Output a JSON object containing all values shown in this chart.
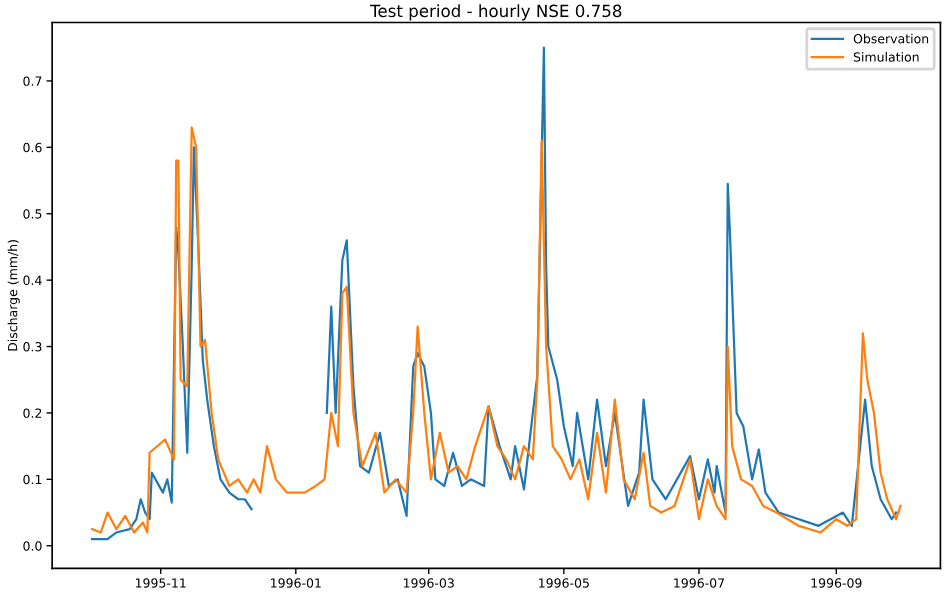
{
  "chart_data": {
    "type": "line",
    "title": "Test period - hourly NSE 0.758",
    "ylabel": "Discharge (mm/h)",
    "xlim": [
      "1995-09-13",
      "1996-10-18"
    ],
    "ylim": [
      -0.034,
      0.788
    ],
    "xticks": [
      "1995-11",
      "1996-01",
      "1996-03",
      "1996-05",
      "1996-07",
      "1996-09"
    ],
    "yticks": [
      {
        "value": 0,
        "label": "0.0"
      },
      0.1,
      0.2,
      0.3,
      0.4,
      0.5,
      0.6,
      0.7
    ],
    "grid": false,
    "legend": "top right",
    "line_style": "solid",
    "marker": "none",
    "series": [
      {
        "name": "Observation",
        "color": "#1f77b4",
        "x": [
          "1995-10-01",
          "1995-10-08",
          "1995-10-12",
          "1995-10-18",
          "1995-10-21",
          "1995-10-23",
          "1995-10-25",
          "1995-10-27",
          "1995-10-28",
          "1995-11-02",
          "1995-11-04",
          "1995-11-06",
          "1995-11-08",
          "1995-11-09",
          "1995-11-11",
          "1995-11-13",
          "1995-11-15",
          "1995-11-16",
          "1995-11-18",
          "1995-11-20",
          "1995-11-22",
          "1995-11-25",
          "1995-11-28",
          "1995-12-02",
          "1995-12-06",
          "1995-12-09",
          "1995-12-12",
          "1995-12-13",
          "1996-01-15",
          "1996-01-17",
          "1996-01-19",
          "1996-01-22",
          "1996-01-24",
          "1996-01-27",
          "1996-01-30",
          "1996-02-03",
          "1996-02-08",
          "1996-02-12",
          "1996-02-16",
          "1996-02-20",
          "1996-02-23",
          "1996-02-25",
          "1996-02-28",
          "1996-03-02",
          "1996-03-04",
          "1996-03-08",
          "1996-03-12",
          "1996-03-16",
          "1996-03-20",
          "1996-03-26",
          "1996-03-28",
          "1996-04-02",
          "1996-04-07",
          "1996-04-09",
          "1996-04-13",
          "1996-04-17",
          "1996-04-19",
          "1996-04-22",
          "1996-04-23",
          "1996-04-24",
          "1996-04-28",
          "1996-05-01",
          "1996-05-05",
          "1996-05-07",
          "1996-05-12",
          "1996-05-16",
          "1996-05-20",
          "1996-05-24",
          "1996-05-30",
          "1996-06-04",
          "1996-06-06",
          "1996-06-10",
          "1996-06-16",
          "1996-06-27",
          "1996-07-01",
          "1996-07-05",
          "1996-07-08",
          "1996-07-09",
          "1996-07-13",
          "1996-07-14",
          "1996-07-15",
          "1996-07-18",
          "1996-07-21",
          "1996-07-25",
          "1996-07-28",
          "1996-07-31",
          "1996-08-06",
          "1996-08-24",
          "1996-09-04",
          "1996-09-08",
          "1996-09-14",
          "1996-09-17",
          "1996-09-21",
          "1996-09-26",
          "1996-09-28"
        ],
        "values": [
          0.01,
          0.01,
          0.02,
          0.025,
          0.04,
          0.07,
          0.05,
          0.04,
          0.11,
          0.08,
          0.1,
          0.065,
          0.48,
          0.44,
          0.3,
          0.14,
          0.42,
          0.6,
          0.45,
          0.28,
          0.22,
          0.15,
          0.1,
          0.08,
          0.07,
          0.07,
          0.055,
          null,
          0.2,
          0.36,
          0.2,
          0.43,
          0.46,
          0.24,
          0.12,
          0.11,
          0.17,
          0.09,
          0.1,
          0.045,
          0.27,
          0.29,
          0.27,
          0.2,
          0.1,
          0.09,
          0.14,
          0.09,
          0.1,
          0.09,
          0.21,
          0.15,
          0.1,
          0.15,
          0.085,
          0.2,
          0.255,
          0.75,
          0.42,
          0.3,
          0.25,
          0.18,
          0.12,
          0.2,
          0.1,
          0.22,
          0.12,
          0.2,
          0.06,
          0.11,
          0.22,
          0.1,
          0.07,
          0.135,
          0.07,
          0.13,
          0.08,
          0.12,
          0.05,
          0.545,
          0.47,
          0.2,
          0.18,
          0.1,
          0.145,
          0.08,
          0.05,
          0.03,
          0.05,
          0.03,
          0.22,
          0.12,
          0.07,
          0.04,
          0.05
        ]
      },
      {
        "name": "Simulation",
        "color": "#ff7f0e",
        "x": [
          "1995-10-01",
          "1995-10-05",
          "1995-10-08",
          "1995-10-12",
          "1995-10-16",
          "1995-10-20",
          "1995-10-24",
          "1995-10-26",
          "1995-10-27",
          "1995-11-03",
          "1995-11-07",
          "1995-11-08",
          "1995-11-09",
          "1995-11-10",
          "1995-11-13",
          "1995-11-15",
          "1995-11-17",
          "1995-11-19",
          "1995-11-21",
          "1995-11-24",
          "1995-11-27",
          "1995-12-02",
          "1995-12-06",
          "1995-12-10",
          "1995-12-13",
          "1995-12-16",
          "1995-12-19",
          "1995-12-23",
          "1995-12-28",
          "1996-01-05",
          "1996-01-10",
          "1996-01-14",
          "1996-01-17",
          "1996-01-20",
          "1996-01-22",
          "1996-01-24",
          "1996-01-27",
          "1996-01-31",
          "1996-02-06",
          "1996-02-10",
          "1996-02-15",
          "1996-02-20",
          "1996-02-23",
          "1996-02-25",
          "1996-02-28",
          "1996-03-02",
          "1996-03-06",
          "1996-03-10",
          "1996-03-14",
          "1996-03-18",
          "1996-03-22",
          "1996-03-28",
          "1996-04-01",
          "1996-04-05",
          "1996-04-09",
          "1996-04-13",
          "1996-04-17",
          "1996-04-19",
          "1996-04-21",
          "1996-04-23",
          "1996-04-26",
          "1996-04-30",
          "1996-05-04",
          "1996-05-08",
          "1996-05-12",
          "1996-05-16",
          "1996-05-20",
          "1996-05-24",
          "1996-05-28",
          "1996-06-02",
          "1996-06-06",
          "1996-06-09",
          "1996-06-14",
          "1996-06-20",
          "1996-06-27",
          "1996-07-01",
          "1996-07-05",
          "1996-07-09",
          "1996-07-13",
          "1996-07-14",
          "1996-07-16",
          "1996-07-20",
          "1996-07-25",
          "1996-07-30",
          "1996-08-05",
          "1996-08-15",
          "1996-08-25",
          "1996-09-01",
          "1996-09-06",
          "1996-09-10",
          "1996-09-13",
          "1996-09-15",
          "1996-09-18",
          "1996-09-21",
          "1996-09-24",
          "1996-09-28",
          "1996-09-30"
        ],
        "values": [
          0.025,
          0.02,
          0.05,
          0.025,
          0.045,
          0.02,
          0.035,
          0.02,
          0.14,
          0.16,
          0.13,
          0.58,
          0.58,
          0.25,
          0.24,
          0.63,
          0.6,
          0.3,
          0.31,
          0.2,
          0.13,
          0.09,
          0.1,
          0.08,
          0.1,
          0.08,
          0.15,
          0.1,
          0.08,
          0.08,
          0.09,
          0.1,
          0.2,
          0.15,
          0.38,
          0.39,
          0.2,
          0.12,
          0.17,
          0.08,
          0.1,
          0.08,
          0.2,
          0.33,
          0.2,
          0.1,
          0.17,
          0.11,
          0.12,
          0.1,
          0.15,
          0.21,
          0.15,
          0.13,
          0.1,
          0.15,
          0.13,
          0.25,
          0.61,
          0.3,
          0.15,
          0.13,
          0.1,
          0.13,
          0.07,
          0.17,
          0.08,
          0.22,
          0.1,
          0.07,
          0.14,
          0.06,
          0.05,
          0.06,
          0.13,
          0.04,
          0.1,
          0.06,
          0.04,
          0.3,
          0.15,
          0.1,
          0.09,
          0.06,
          0.05,
          0.03,
          0.02,
          0.04,
          0.03,
          0.04,
          0.32,
          0.25,
          0.2,
          0.11,
          0.07,
          0.04,
          0.06
        ]
      }
    ]
  }
}
